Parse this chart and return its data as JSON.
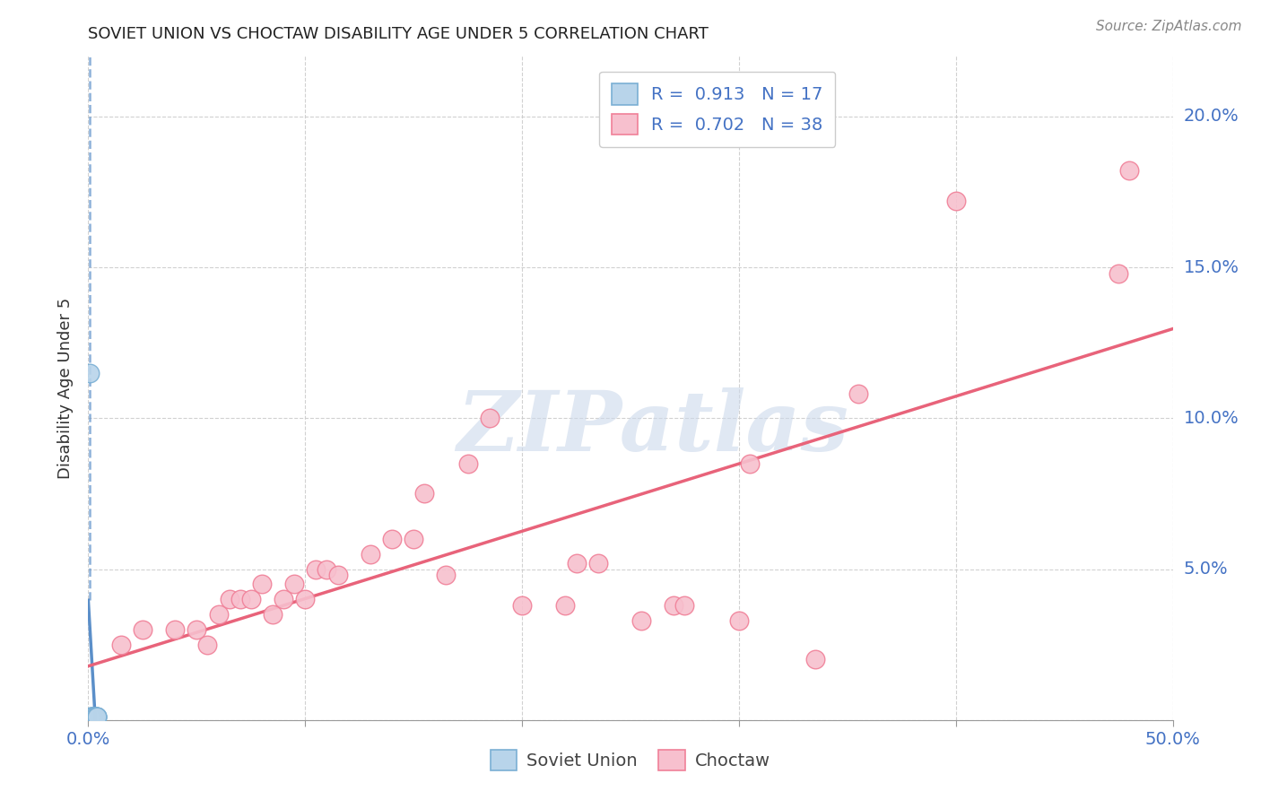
{
  "title": "SOVIET UNION VS CHOCTAW DISABILITY AGE UNDER 5 CORRELATION CHART",
  "source": "Source: ZipAtlas.com",
  "ylabel": "Disability Age Under 5",
  "xlim": [
    0.0,
    0.5
  ],
  "ylim": [
    0.0,
    0.22
  ],
  "xticks": [
    0.0,
    0.1,
    0.2,
    0.3,
    0.4,
    0.5
  ],
  "yticks": [
    0.0,
    0.05,
    0.1,
    0.15,
    0.2
  ],
  "soviet_R": 0.913,
  "soviet_N": 17,
  "choctaw_R": 0.702,
  "choctaw_N": 38,
  "soviet_fill_color": "#b8d4ea",
  "choctaw_fill_color": "#f7c0ce",
  "soviet_edge_color": "#7aafd4",
  "choctaw_edge_color": "#f08098",
  "soviet_line_color": "#5b8fc9",
  "choctaw_line_color": "#e8637a",
  "legend_R_color": "#4472c4",
  "legend_N_color": "#e84393",
  "background_color": "#ffffff",
  "watermark": "ZIPatlas",
  "soviet_points": [
    [
      0.0005,
      0.115
    ],
    [
      0.001,
      0.001
    ],
    [
      0.001,
      0.001
    ],
    [
      0.002,
      0.001
    ],
    [
      0.002,
      0.001
    ],
    [
      0.002,
      0.001
    ],
    [
      0.002,
      0.001
    ],
    [
      0.003,
      0.001
    ],
    [
      0.003,
      0.001
    ],
    [
      0.003,
      0.001
    ],
    [
      0.003,
      0.001
    ],
    [
      0.003,
      0.001
    ],
    [
      0.003,
      0.001
    ],
    [
      0.004,
      0.001
    ],
    [
      0.004,
      0.001
    ],
    [
      0.004,
      0.001
    ],
    [
      0.004,
      0.001
    ]
  ],
  "choctaw_points": [
    [
      0.015,
      0.025
    ],
    [
      0.025,
      0.03
    ],
    [
      0.04,
      0.03
    ],
    [
      0.05,
      0.03
    ],
    [
      0.055,
      0.025
    ],
    [
      0.06,
      0.035
    ],
    [
      0.065,
      0.04
    ],
    [
      0.07,
      0.04
    ],
    [
      0.075,
      0.04
    ],
    [
      0.08,
      0.045
    ],
    [
      0.085,
      0.035
    ],
    [
      0.09,
      0.04
    ],
    [
      0.095,
      0.045
    ],
    [
      0.1,
      0.04
    ],
    [
      0.105,
      0.05
    ],
    [
      0.11,
      0.05
    ],
    [
      0.115,
      0.048
    ],
    [
      0.13,
      0.055
    ],
    [
      0.14,
      0.06
    ],
    [
      0.15,
      0.06
    ],
    [
      0.155,
      0.075
    ],
    [
      0.165,
      0.048
    ],
    [
      0.175,
      0.085
    ],
    [
      0.185,
      0.1
    ],
    [
      0.2,
      0.038
    ],
    [
      0.22,
      0.038
    ],
    [
      0.225,
      0.052
    ],
    [
      0.235,
      0.052
    ],
    [
      0.255,
      0.033
    ],
    [
      0.27,
      0.038
    ],
    [
      0.275,
      0.038
    ],
    [
      0.3,
      0.033
    ],
    [
      0.305,
      0.085
    ],
    [
      0.335,
      0.02
    ],
    [
      0.355,
      0.108
    ],
    [
      0.4,
      0.172
    ],
    [
      0.475,
      0.148
    ],
    [
      0.48,
      0.182
    ]
  ],
  "soviet_line_x": [
    0.0,
    0.005
  ],
  "choctaw_line_x": [
    0.0,
    0.5
  ]
}
